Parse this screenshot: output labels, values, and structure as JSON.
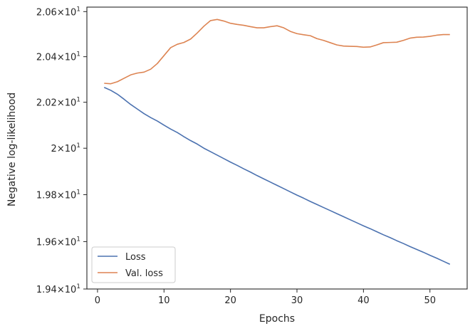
{
  "chart_data": {
    "type": "line",
    "xlabel": "Epochs",
    "ylabel": "Negative log-likelihood",
    "yscale": "log",
    "xlim": [
      -1.6,
      55.6
    ],
    "ylim": [
      19.4,
      20.62
    ],
    "grid": false,
    "legend_position": "lower-left",
    "x_ticks": [
      {
        "value": 0,
        "label": "0"
      },
      {
        "value": 10,
        "label": "10"
      },
      {
        "value": 20,
        "label": "20"
      },
      {
        "value": 30,
        "label": "30"
      },
      {
        "value": 40,
        "label": "40"
      },
      {
        "value": 50,
        "label": "50"
      }
    ],
    "y_ticks": [
      {
        "value": 19.4,
        "base": "1.94",
        "exp": "1"
      },
      {
        "value": 19.6,
        "base": "1.96",
        "exp": "1"
      },
      {
        "value": 19.8,
        "base": "1.98",
        "exp": "1"
      },
      {
        "value": 20.0,
        "base": "2",
        "exp": "1"
      },
      {
        "value": 20.2,
        "base": "2.02",
        "exp": "1"
      },
      {
        "value": 20.4,
        "base": "2.04",
        "exp": "1"
      },
      {
        "value": 20.6,
        "base": "2.06",
        "exp": "1"
      }
    ],
    "x": [
      1,
      2,
      3,
      4,
      5,
      6,
      7,
      8,
      9,
      10,
      11,
      12,
      13,
      14,
      15,
      16,
      17,
      18,
      19,
      20,
      21,
      22,
      23,
      24,
      25,
      26,
      27,
      28,
      29,
      30,
      31,
      32,
      33,
      34,
      35,
      36,
      37,
      38,
      39,
      40,
      41,
      42,
      43,
      44,
      45,
      46,
      47,
      48,
      49,
      50,
      51,
      52,
      53
    ],
    "series": [
      {
        "name": "Loss",
        "color": "#4c72b0",
        "values": [
          20.265,
          20.252,
          20.235,
          20.213,
          20.19,
          20.17,
          20.15,
          20.133,
          20.118,
          20.1,
          20.083,
          20.068,
          20.05,
          20.033,
          20.018,
          20.0,
          19.985,
          19.97,
          19.955,
          19.94,
          19.926,
          19.911,
          19.897,
          19.882,
          19.868,
          19.854,
          19.84,
          19.826,
          19.812,
          19.798,
          19.785,
          19.771,
          19.758,
          19.745,
          19.732,
          19.719,
          19.706,
          19.693,
          19.68,
          19.667,
          19.655,
          19.642,
          19.629,
          19.617,
          19.604,
          19.592,
          19.579,
          19.567,
          19.555,
          19.542,
          19.53,
          19.517,
          19.504
        ]
      },
      {
        "name": "Val. loss",
        "color": "#dd8452",
        "values": [
          20.283,
          20.281,
          20.29,
          20.305,
          20.32,
          20.328,
          20.332,
          20.345,
          20.37,
          20.405,
          20.44,
          20.455,
          20.463,
          20.478,
          20.505,
          20.535,
          20.56,
          20.565,
          20.558,
          20.548,
          20.543,
          20.539,
          20.533,
          20.528,
          20.528,
          20.533,
          20.537,
          20.528,
          20.512,
          20.502,
          20.497,
          20.493,
          20.48,
          20.472,
          20.462,
          20.452,
          20.447,
          20.446,
          20.445,
          20.442,
          20.443,
          20.452,
          20.462,
          20.463,
          20.464,
          20.472,
          20.482,
          20.486,
          20.487,
          20.49,
          20.495,
          20.498,
          20.498
        ]
      }
    ]
  }
}
